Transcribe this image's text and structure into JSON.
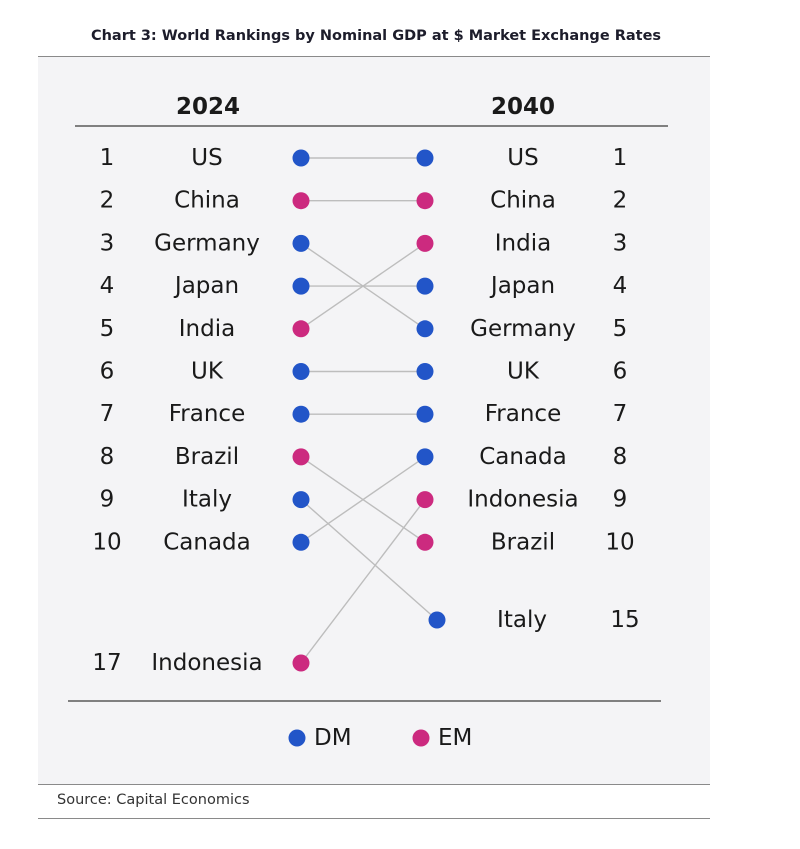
{
  "title": "Chart 3: World Rankings by Nominal GDP at $ Market Exchange Rates",
  "source": "Source: Capital Economics",
  "colors": {
    "DM": "#2255c8",
    "EM": "#cc2a7f",
    "line": "#bdbdbd"
  },
  "chart_data": {
    "type": "slope",
    "left_header": "2024",
    "right_header": "2040",
    "countries": [
      {
        "name": "US",
        "group": "DM",
        "rank_2024": 1,
        "rank_2040": 1
      },
      {
        "name": "China",
        "group": "EM",
        "rank_2024": 2,
        "rank_2040": 2
      },
      {
        "name": "Germany",
        "group": "DM",
        "rank_2024": 3,
        "rank_2040": 5
      },
      {
        "name": "Japan",
        "group": "DM",
        "rank_2024": 4,
        "rank_2040": 4
      },
      {
        "name": "India",
        "group": "EM",
        "rank_2024": 5,
        "rank_2040": 3
      },
      {
        "name": "UK",
        "group": "DM",
        "rank_2024": 6,
        "rank_2040": 6
      },
      {
        "name": "France",
        "group": "DM",
        "rank_2024": 7,
        "rank_2040": 7
      },
      {
        "name": "Brazil",
        "group": "EM",
        "rank_2024": 8,
        "rank_2040": 10
      },
      {
        "name": "Italy",
        "group": "DM",
        "rank_2024": 9,
        "rank_2040": 15
      },
      {
        "name": "Canada",
        "group": "DM",
        "rank_2024": 10,
        "rank_2040": 8
      },
      {
        "name": "Indonesia",
        "group": "EM",
        "rank_2024": 17,
        "rank_2040": 9
      }
    ],
    "legend": [
      {
        "key": "DM",
        "label": "DM"
      },
      {
        "key": "EM",
        "label": "EM"
      }
    ]
  }
}
